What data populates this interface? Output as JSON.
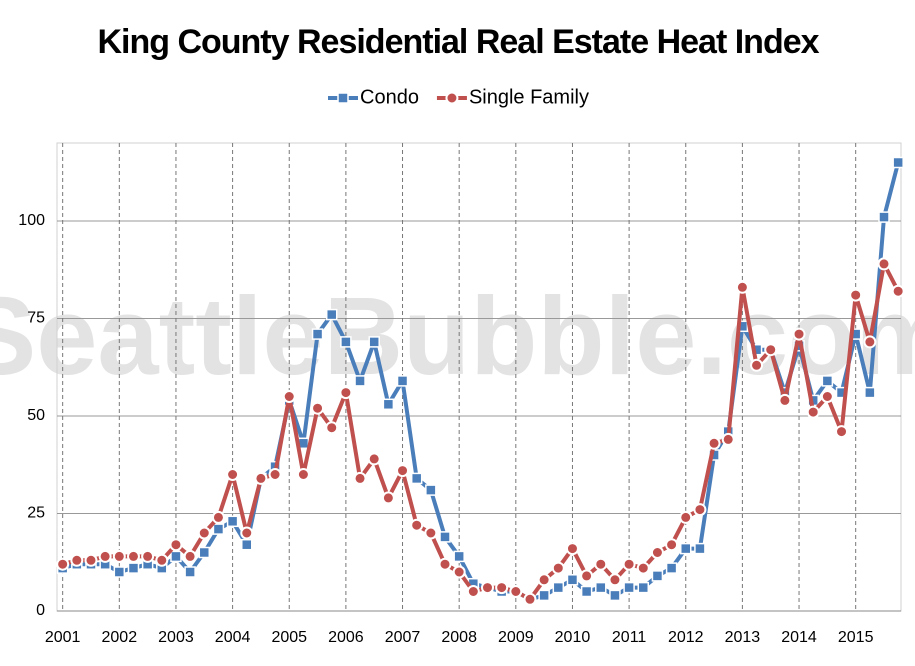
{
  "chart_data": {
    "type": "line",
    "title": "King County Residential Real Estate Heat Index",
    "watermark": "SeattleBubble.com",
    "x": [
      2001,
      2001.25,
      2001.5,
      2001.75,
      2002,
      2002.25,
      2002.5,
      2002.75,
      2003,
      2003.25,
      2003.5,
      2003.75,
      2004,
      2004.25,
      2004.5,
      2004.75,
      2005,
      2005.25,
      2005.5,
      2005.75,
      2006,
      2006.25,
      2006.5,
      2006.75,
      2007,
      2007.25,
      2007.5,
      2007.75,
      2008,
      2008.25,
      2008.5,
      2008.75,
      2009,
      2009.25,
      2009.5,
      2009.75,
      2010,
      2010.25,
      2010.5,
      2010.75,
      2011,
      2011.25,
      2011.5,
      2011.75,
      2012,
      2012.25,
      2012.5,
      2012.75,
      2013,
      2013.25,
      2013.5,
      2013.75,
      2014,
      2014.25,
      2014.5,
      2014.75,
      2015,
      2015.25,
      2015.5,
      2015.75
    ],
    "series": [
      {
        "name": "Condo",
        "color": "#4a7ebb",
        "marker": "square",
        "values": [
          11,
          12,
          12,
          12,
          10,
          11,
          12,
          11,
          14,
          10,
          15,
          21,
          23,
          17,
          34,
          37,
          54,
          43,
          71,
          76,
          69,
          59,
          69,
          53,
          59,
          34,
          31,
          19,
          14,
          7,
          6,
          5,
          5,
          3,
          4,
          6,
          8,
          5,
          6,
          4,
          6,
          6,
          9,
          11,
          16,
          16,
          40,
          46,
          73,
          67,
          67,
          56,
          68,
          54,
          59,
          56,
          71,
          56,
          101,
          115
        ]
      },
      {
        "name": "Single Family",
        "color": "#c0504d",
        "marker": "circle",
        "values": [
          12,
          13,
          13,
          14,
          14,
          14,
          14,
          13,
          17,
          14,
          20,
          24,
          35,
          20,
          34,
          35,
          55,
          35,
          52,
          47,
          56,
          34,
          39,
          29,
          36,
          22,
          20,
          12,
          10,
          5,
          6,
          6,
          5,
          3,
          8,
          11,
          16,
          9,
          12,
          8,
          12,
          11,
          15,
          17,
          24,
          26,
          43,
          44,
          83,
          63,
          67,
          54,
          71,
          51,
          55,
          46,
          81,
          69,
          89,
          82
        ]
      }
    ],
    "xlim": [
      2000.9,
      2015.8
    ],
    "xticks": [
      2001,
      2002,
      2003,
      2004,
      2005,
      2006,
      2007,
      2008,
      2009,
      2010,
      2011,
      2012,
      2013,
      2014,
      2015
    ],
    "ylim": [
      0,
      120
    ],
    "yticks": [
      0,
      25,
      50,
      75,
      100
    ],
    "grid": true,
    "legend": "top"
  }
}
